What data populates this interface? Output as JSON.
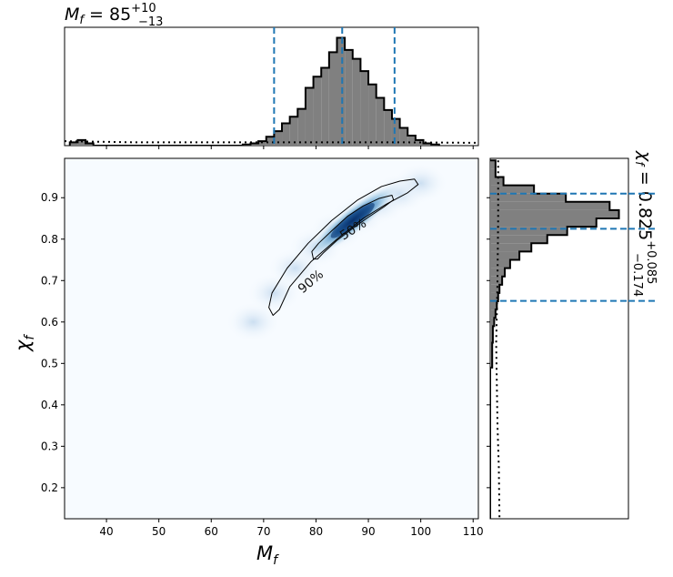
{
  "chart_data": {
    "type": "heatmap",
    "top_title": {
      "base": "M",
      "sub": "f",
      "eq": " = 85",
      "sup": "+10",
      "inf": "−13"
    },
    "right_title": {
      "base": "χ",
      "sub": "f",
      "eq": " = 0.825",
      "sup": "+0.085",
      "inf": "−0.174"
    },
    "xlabel": {
      "base": "M",
      "sub": "f"
    },
    "ylabel": {
      "base": "χ",
      "sub": "f"
    },
    "xlim": [
      32,
      111
    ],
    "ylim": [
      0.125,
      0.995
    ],
    "xticks": [
      40,
      50,
      60,
      70,
      80,
      90,
      100,
      110
    ],
    "yticks": [
      0.2,
      0.3,
      0.4,
      0.5,
      0.6,
      0.7,
      0.8,
      0.9
    ],
    "mass_histogram": {
      "bins": [
        {
          "x0": 33,
          "x1": 34.5,
          "d": 0.03
        },
        {
          "x0": 34.5,
          "x1": 36,
          "d": 0.05
        },
        {
          "x0": 36,
          "x1": 37.5,
          "d": 0.02
        },
        {
          "x0": 37.5,
          "x1": 66,
          "d": 0.0
        },
        {
          "x0": 66,
          "x1": 67.5,
          "d": 0.01
        },
        {
          "x0": 67.5,
          "x1": 69,
          "d": 0.02
        },
        {
          "x0": 69,
          "x1": 70.5,
          "d": 0.04
        },
        {
          "x0": 70.5,
          "x1": 72,
          "d": 0.08
        },
        {
          "x0": 72,
          "x1": 73.5,
          "d": 0.13
        },
        {
          "x0": 73.5,
          "x1": 75,
          "d": 0.2
        },
        {
          "x0": 75,
          "x1": 76.5,
          "d": 0.26
        },
        {
          "x0": 76.5,
          "x1": 78,
          "d": 0.33
        },
        {
          "x0": 78,
          "x1": 79.5,
          "d": 0.52
        },
        {
          "x0": 79.5,
          "x1": 81,
          "d": 0.62
        },
        {
          "x0": 81,
          "x1": 82.5,
          "d": 0.7
        },
        {
          "x0": 82.5,
          "x1": 84,
          "d": 0.84
        },
        {
          "x0": 84,
          "x1": 85.5,
          "d": 0.97
        },
        {
          "x0": 85.5,
          "x1": 87,
          "d": 0.86
        },
        {
          "x0": 87,
          "x1": 88.5,
          "d": 0.78
        },
        {
          "x0": 88.5,
          "x1": 90,
          "d": 0.67
        },
        {
          "x0": 90,
          "x1": 91.5,
          "d": 0.55
        },
        {
          "x0": 91.5,
          "x1": 93,
          "d": 0.43
        },
        {
          "x0": 93,
          "x1": 94.5,
          "d": 0.32
        },
        {
          "x0": 94.5,
          "x1": 96,
          "d": 0.24
        },
        {
          "x0": 96,
          "x1": 97.5,
          "d": 0.16
        },
        {
          "x0": 97.5,
          "x1": 99,
          "d": 0.09
        },
        {
          "x0": 99,
          "x1": 100.5,
          "d": 0.05
        },
        {
          "x0": 100.5,
          "x1": 102,
          "d": 0.02
        },
        {
          "x0": 102,
          "x1": 103.5,
          "d": 0.01
        }
      ],
      "prior": [
        [
          32,
          0.04
        ],
        [
          45,
          0.03
        ],
        [
          65,
          0.03
        ],
        [
          80,
          0.03
        ],
        [
          95,
          0.03
        ],
        [
          111,
          0.025
        ]
      ],
      "quantile_lines": [
        72,
        85,
        95
      ]
    },
    "spin_histogram": {
      "bins": [
        {
          "y0": 0.97,
          "y1": 0.99,
          "d": 0.04
        },
        {
          "y0": 0.95,
          "y1": 0.97,
          "d": 0.04
        },
        {
          "y0": 0.93,
          "y1": 0.95,
          "d": 0.1
        },
        {
          "y0": 0.91,
          "y1": 0.93,
          "d": 0.33
        },
        {
          "y0": 0.89,
          "y1": 0.91,
          "d": 0.57
        },
        {
          "y0": 0.87,
          "y1": 0.89,
          "d": 0.9
        },
        {
          "y0": 0.85,
          "y1": 0.87,
          "d": 0.97
        },
        {
          "y0": 0.83,
          "y1": 0.85,
          "d": 0.8
        },
        {
          "y0": 0.81,
          "y1": 0.83,
          "d": 0.58
        },
        {
          "y0": 0.79,
          "y1": 0.81,
          "d": 0.43
        },
        {
          "y0": 0.77,
          "y1": 0.79,
          "d": 0.31
        },
        {
          "y0": 0.75,
          "y1": 0.77,
          "d": 0.22
        },
        {
          "y0": 0.73,
          "y1": 0.75,
          "d": 0.15
        },
        {
          "y0": 0.71,
          "y1": 0.73,
          "d": 0.11
        },
        {
          "y0": 0.69,
          "y1": 0.71,
          "d": 0.09
        },
        {
          "y0": 0.67,
          "y1": 0.69,
          "d": 0.07
        },
        {
          "y0": 0.65,
          "y1": 0.67,
          "d": 0.06
        },
        {
          "y0": 0.63,
          "y1": 0.65,
          "d": 0.05
        },
        {
          "y0": 0.61,
          "y1": 0.63,
          "d": 0.04
        },
        {
          "y0": 0.59,
          "y1": 0.61,
          "d": 0.03
        },
        {
          "y0": 0.55,
          "y1": 0.59,
          "d": 0.02
        },
        {
          "y0": 0.49,
          "y1": 0.55,
          "d": 0.015
        },
        {
          "y0": 0.125,
          "y1": 0.49,
          "d": 0.0
        }
      ],
      "prior": [
        [
          0.99,
          0.06
        ],
        [
          0.85,
          0.06
        ],
        [
          0.7,
          0.055
        ],
        [
          0.62,
          0.05
        ],
        [
          0.55,
          0.045
        ],
        [
          0.45,
          0.05
        ],
        [
          0.35,
          0.055
        ],
        [
          0.25,
          0.065
        ],
        [
          0.125,
          0.07
        ]
      ],
      "quantile_lines": [
        0.651,
        0.825,
        0.91
      ]
    },
    "density": {
      "peak": [
        87,
        0.845
      ],
      "cloud_ridge": [
        [
          68,
          0.6
        ],
        [
          72,
          0.67
        ],
        [
          76,
          0.73
        ],
        [
          80,
          0.78
        ],
        [
          84,
          0.82
        ],
        [
          88,
          0.855
        ],
        [
          92,
          0.885
        ],
        [
          96,
          0.91
        ],
        [
          100,
          0.935
        ]
      ]
    },
    "contours": [
      {
        "label": "50%",
        "points": [
          [
            79.5,
            0.752
          ],
          [
            79.2,
            0.77
          ],
          [
            80.5,
            0.79
          ],
          [
            83,
            0.82
          ],
          [
            86,
            0.855
          ],
          [
            89,
            0.88
          ],
          [
            92,
            0.898
          ],
          [
            94.5,
            0.906
          ],
          [
            94.8,
            0.895
          ],
          [
            93,
            0.878
          ],
          [
            90,
            0.853
          ],
          [
            87,
            0.826
          ],
          [
            84,
            0.797
          ],
          [
            81.5,
            0.768
          ],
          [
            80.3,
            0.752
          ]
        ],
        "label_at": [
          87.5,
          0.815
        ],
        "label_angle": -32
      },
      {
        "label": "90%",
        "points": [
          [
            71.8,
            0.616
          ],
          [
            71.0,
            0.635
          ],
          [
            71.6,
            0.67
          ],
          [
            74.5,
            0.73
          ],
          [
            78.5,
            0.79
          ],
          [
            83,
            0.845
          ],
          [
            88,
            0.895
          ],
          [
            92.5,
            0.927
          ],
          [
            96,
            0.94
          ],
          [
            98.8,
            0.945
          ],
          [
            99.5,
            0.932
          ],
          [
            97.5,
            0.912
          ],
          [
            93.5,
            0.885
          ],
          [
            89,
            0.85
          ],
          [
            84,
            0.8
          ],
          [
            79,
            0.745
          ],
          [
            75,
            0.685
          ],
          [
            73,
            0.63
          ]
        ],
        "label_at": [
          79.5,
          0.69
        ],
        "label_angle": -40
      }
    ],
    "colors": {
      "hist_fill": "#808080",
      "quantile": "#1f77b4",
      "heat_low": "#f7fbff",
      "heat_high": "#08306b"
    }
  }
}
